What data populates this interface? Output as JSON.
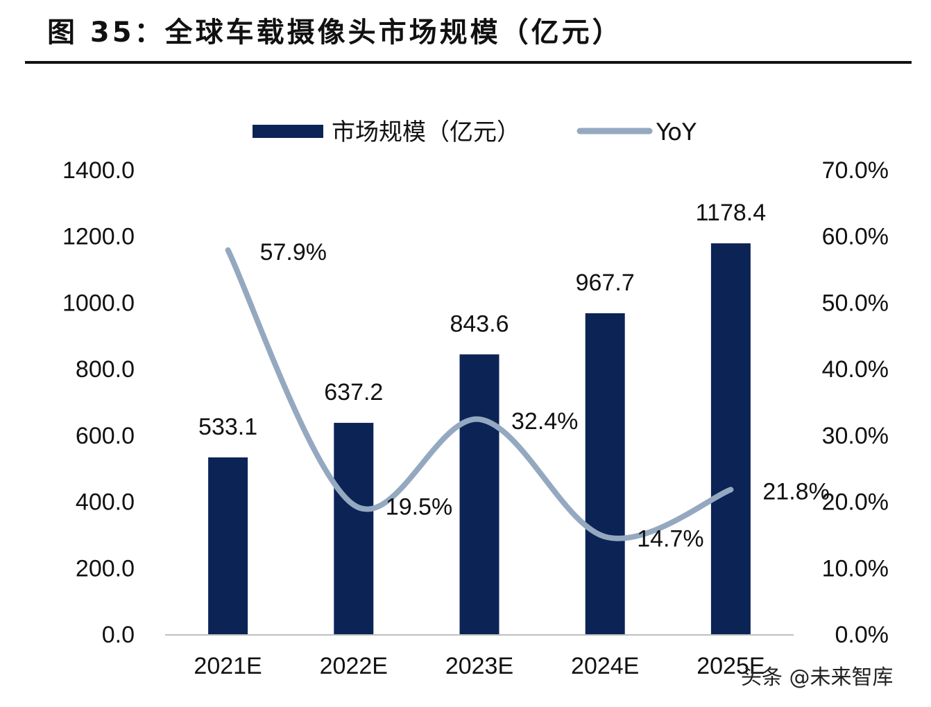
{
  "figure": {
    "title": "图 35：全球车载摄像头市场规模（亿元）"
  },
  "watermark": "头条 @未来智库",
  "chart_data": {
    "type": "bar",
    "title": "图 35：全球车载摄像头市场规模（亿元）",
    "categories": [
      "2021E",
      "2022E",
      "2023E",
      "2024E",
      "2025E"
    ],
    "series": [
      {
        "name": "市场规模（亿元）",
        "type": "bar",
        "axis": "left",
        "color": "#0c2356",
        "values": [
          533.1,
          637.2,
          843.6,
          967.7,
          1178.4
        ],
        "labels": [
          "533.1",
          "637.2",
          "843.6",
          "967.7",
          "1178.4"
        ]
      },
      {
        "name": "YoY",
        "type": "line",
        "axis": "right",
        "color": "#94a9c0",
        "values": [
          57.9,
          19.5,
          32.4,
          14.7,
          21.8
        ],
        "labels": [
          "57.9%",
          "19.5%",
          "32.4%",
          "14.7%",
          "21.8%"
        ]
      }
    ],
    "y_left": {
      "ylim": [
        0,
        1400
      ],
      "ticks": [
        "0.0",
        "200.0",
        "400.0",
        "600.0",
        "800.0",
        "1000.0",
        "1200.0",
        "1400.0"
      ]
    },
    "y_right": {
      "ylim": [
        0,
        70
      ],
      "ticks": [
        "0.0%",
        "10.0%",
        "20.0%",
        "30.0%",
        "40.0%",
        "50.0%",
        "60.0%",
        "70.0%"
      ]
    },
    "xlabel": "",
    "ylabel": "",
    "grid": false,
    "legend": "top-center"
  }
}
